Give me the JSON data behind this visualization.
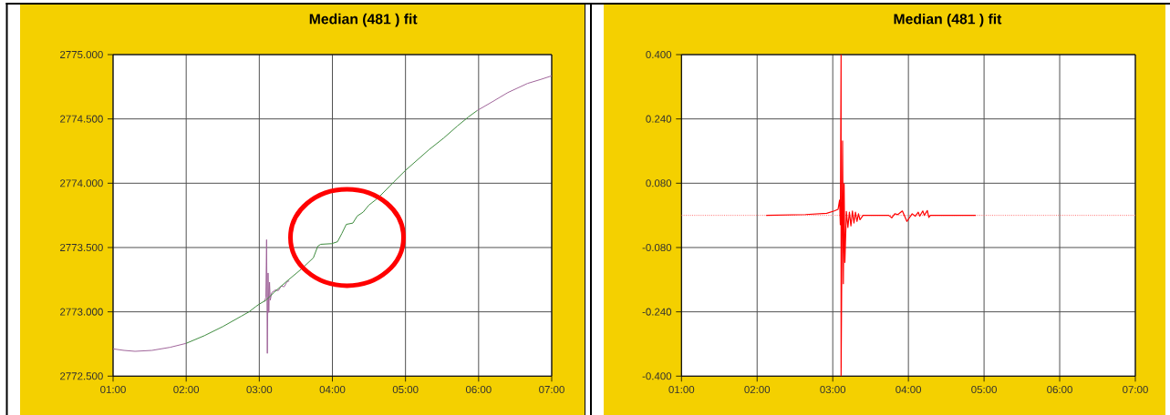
{
  "chart_data": [
    {
      "type": "line",
      "title": "Median (481 ) fit",
      "xlim": [
        1,
        7
      ],
      "xticks": [
        {
          "value": 1,
          "label": "01:00"
        },
        {
          "value": 2,
          "label": "02:00"
        },
        {
          "value": 3,
          "label": "03:00"
        },
        {
          "value": 4,
          "label": "04:00"
        },
        {
          "value": 5,
          "label": "05:00"
        },
        {
          "value": 6,
          "label": "06:00"
        },
        {
          "value": 7,
          "label": "07:00"
        }
      ],
      "ylim": [
        2772.5,
        2775
      ],
      "yticks": [
        {
          "value": 2772.5,
          "label": "2772.500"
        },
        {
          "value": 2773,
          "label": "2773.000"
        },
        {
          "value": 2773.5,
          "label": "2773.500"
        },
        {
          "value": 2774,
          "label": "2774.000"
        },
        {
          "value": 2774.5,
          "label": "2774.500"
        },
        {
          "value": 2775,
          "label": "2775.000"
        }
      ],
      "grid": true,
      "series": [
        {
          "color": "#a0649a",
          "x": [
            1.0,
            1.15,
            1.3,
            1.53,
            1.78,
            2.0,
            2.5,
            3.07,
            3.09,
            3.1,
            3.11,
            3.12,
            3.13,
            3.14,
            3.15,
            3.17,
            3.22,
            3.26,
            3.3,
            3.34,
            3.38,
            3.41,
            4.7,
            5.98,
            6.19,
            6.4,
            6.67,
            6.85,
            7.0
          ],
          "values": [
            2772.712,
            2772.7,
            2772.693,
            2772.7,
            2772.724,
            2772.755,
            null,
            2773.078,
            2773.113,
            2773.561,
            2772.677,
            2773.302,
            2772.995,
            2773.231,
            2773.09,
            2773.149,
            2773.17,
            2773.165,
            2773.2,
            2773.195,
            2773.235,
            2773.24,
            null,
            2774.565,
            2774.634,
            2774.705,
            2774.776,
            2774.807,
            2774.835
          ]
        },
        {
          "color": "#3d8b3d",
          "x": [
            2.0,
            2.25,
            2.5,
            2.75,
            2.86,
            2.95,
            3.0,
            3.09,
            3.2,
            3.36,
            3.57,
            3.74,
            3.8,
            3.84,
            3.99,
            4.07,
            4.13,
            4.19,
            4.28,
            4.34,
            4.42,
            4.5,
            4.59,
            4.65,
            4.78,
            4.84,
            5.0,
            5.32,
            5.52,
            5.71,
            5.86,
            5.98
          ],
          "values": [
            2772.755,
            2772.815,
            2772.885,
            2772.965,
            2773.0,
            2773.04,
            2773.06,
            2773.09,
            2773.15,
            2773.23,
            2773.33,
            2773.42,
            2773.51,
            2773.525,
            2773.53,
            2773.545,
            2773.61,
            2773.68,
            2773.69,
            2773.745,
            2773.775,
            2773.83,
            2773.87,
            2773.9,
            2773.975,
            2774.01,
            2774.1,
            2774.26,
            2774.35,
            2774.445,
            2774.515,
            2774.565
          ]
        }
      ]
    },
    {
      "type": "line",
      "title": "Median (481 ) fit",
      "xlim": [
        1,
        7
      ],
      "xticks": [
        {
          "value": 1,
          "label": "01:00"
        },
        {
          "value": 2,
          "label": "02:00"
        },
        {
          "value": 3,
          "label": "03:00"
        },
        {
          "value": 4,
          "label": "04:00"
        },
        {
          "value": 5,
          "label": "05:00"
        },
        {
          "value": 6,
          "label": "06:00"
        },
        {
          "value": 7,
          "label": "07:00"
        }
      ],
      "ylim": [
        -0.4,
        0.4
      ],
      "yticks": [
        {
          "value": -0.4,
          "label": "-0.400"
        },
        {
          "value": -0.24,
          "label": "-0.240"
        },
        {
          "value": -0.08,
          "label": "-0.080"
        },
        {
          "value": 0.08,
          "label": "0.080"
        },
        {
          "value": 0.24,
          "label": "0.240"
        },
        {
          "value": 0.4,
          "label": "0.400"
        }
      ],
      "grid": true,
      "ref_lines": [
        {
          "axis": "y",
          "value": 0,
          "color": "#ff7070",
          "line_style": "dotted"
        }
      ],
      "series": [
        {
          "color": "#ff0000",
          "x": [
            2.12,
            2.64,
            2.92,
            3.02,
            3.07,
            3.09,
            3.1,
            3.11,
            3.11,
            3.13,
            3.14,
            3.15,
            3.16,
            3.18,
            3.2,
            3.22,
            3.24,
            3.26,
            3.28,
            3.3,
            3.32,
            3.34,
            3.36,
            3.4,
            3.74,
            3.78,
            3.82,
            3.86,
            3.92,
            3.98,
            4.05,
            4.09,
            4.13,
            4.15,
            4.19,
            4.21,
            4.25,
            4.27,
            4.29,
            4.89
          ],
          "values": [
            0.0,
            0.002,
            0.005,
            0.011,
            0.015,
            0.038,
            -0.023,
            0.4,
            -0.4,
            0.185,
            -0.17,
            0.079,
            -0.117,
            0.01,
            -0.03,
            0.008,
            -0.026,
            0.011,
            -0.019,
            0.008,
            -0.015,
            0.004,
            -0.011,
            0.0,
            0.0,
            -0.006,
            0.004,
            0.002,
            0.011,
            -0.015,
            0.004,
            -0.002,
            0.008,
            -0.002,
            0.011,
            0.0,
            0.012,
            -0.005,
            0.0,
            0.0
          ]
        }
      ]
    }
  ]
}
